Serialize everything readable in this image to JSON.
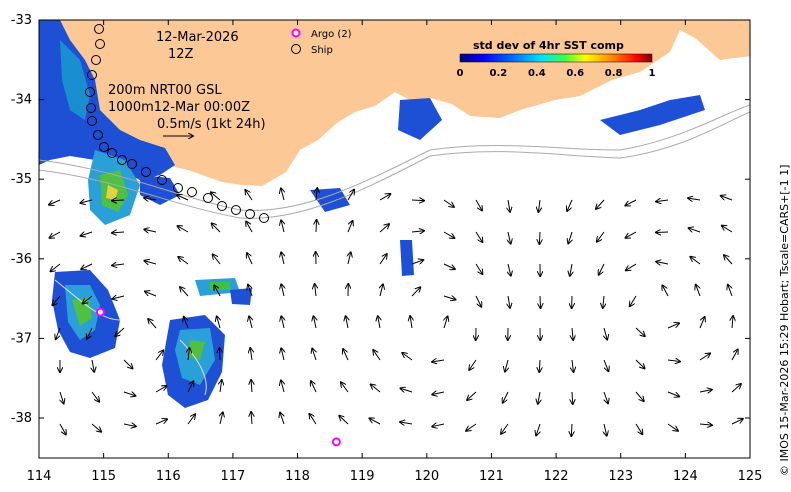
{
  "map": {
    "date": "12-Mar-2026",
    "time": "12Z",
    "contour_line1": "200m  NRT00 GSL",
    "contour_line2": "1000m12-Mar 00:00Z",
    "vector_scale": "0.5m/s (1kt 24h)"
  },
  "legend": {
    "argo_label": "Argo (2)",
    "ship_label": "Ship"
  },
  "colorbar": {
    "title": "std dev of 4hr SST comp",
    "ticks": [
      "0",
      "0.2",
      "0.4",
      "0.6",
      "0.8",
      "1"
    ],
    "colors": [
      "#00007f",
      "#0000ff",
      "#0080ff",
      "#00e0ff",
      "#40ff40",
      "#ffff00",
      "#ff8000",
      "#ff0000",
      "#7f0000"
    ]
  },
  "axes": {
    "x_ticks": [
      "114",
      "115",
      "116",
      "117",
      "118",
      "119",
      "120",
      "121",
      "122",
      "123",
      "124",
      "125"
    ],
    "y_ticks": [
      "-33",
      "-34",
      "-35",
      "-36",
      "-37",
      "-38"
    ],
    "xlim": [
      114,
      125
    ],
    "ylim": [
      -38.5,
      -33
    ]
  },
  "credit": "© IMOS 15-Mar-2026 15:29 Hobart; Tscale=CARS+[-1 1]",
  "colors": {
    "land": "#fcc896",
    "argo": "#ff00ff",
    "ship": "#000000",
    "bathy": "#aaaaaa"
  },
  "argo_floats": [
    {
      "lon": 114.95,
      "lat": -36.67
    },
    {
      "lon": 118.6,
      "lat": -38.3
    }
  ]
}
